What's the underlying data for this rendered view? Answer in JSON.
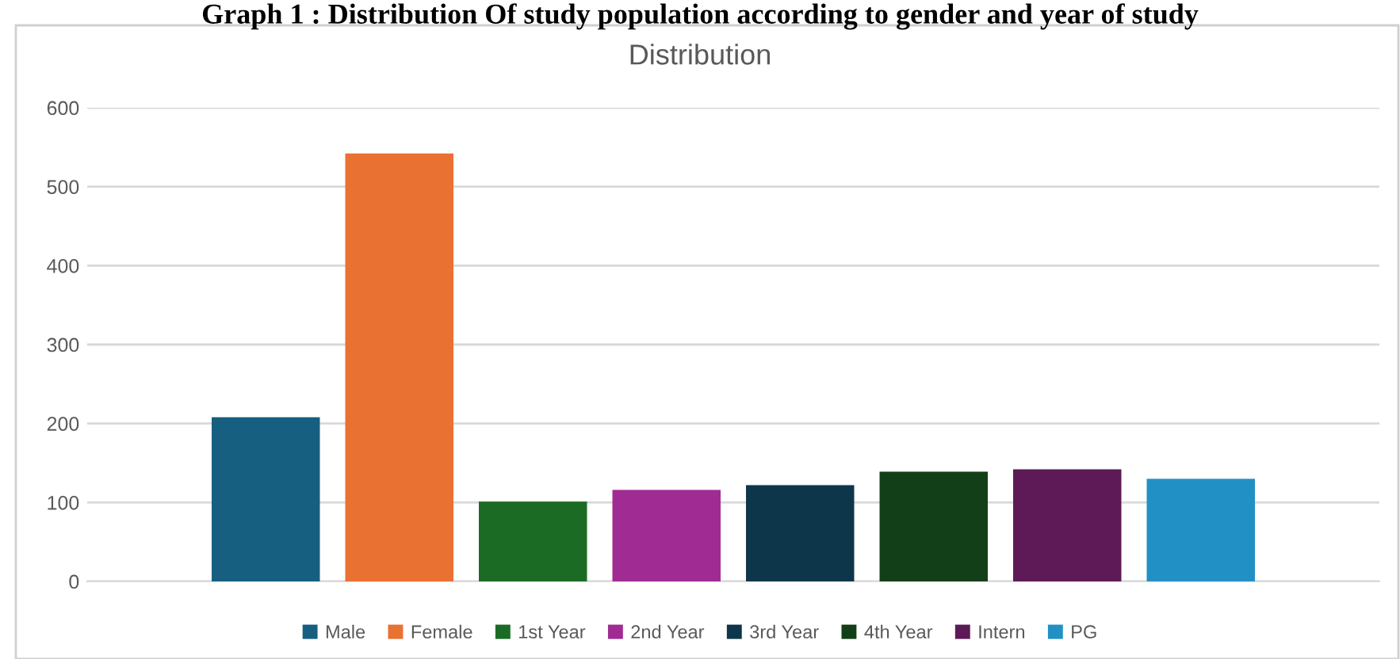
{
  "chart_data": {
    "type": "bar",
    "title": "Distribution",
    "annotations": [
      "Graph 1 : Distribution Of study population according to gender and year of study"
    ],
    "categories": [
      null
    ],
    "series": [
      {
        "name": "Male",
        "color": "#175f80",
        "values": [
          208
        ]
      },
      {
        "name": "Female",
        "color": "#e97132",
        "values": [
          542
        ]
      },
      {
        "name": "1st Year",
        "color": "#1b6b24",
        "values": [
          101
        ]
      },
      {
        "name": "2nd Year",
        "color": "#a02b93",
        "values": [
          116
        ]
      },
      {
        "name": "3rd Year",
        "color": "#0e364b",
        "values": [
          122
        ]
      },
      {
        "name": "4th Year",
        "color": "#123f17",
        "values": [
          139
        ]
      },
      {
        "name": "Intern",
        "color": "#5d1a56",
        "values": [
          142
        ]
      },
      {
        "name": "PG",
        "color": "#2190c4",
        "values": [
          130
        ]
      }
    ],
    "ylim": [
      0,
      600
    ],
    "yticks": [
      0,
      100,
      200,
      300,
      400,
      500,
      600
    ],
    "grid": "y",
    "legend": "bottom"
  }
}
